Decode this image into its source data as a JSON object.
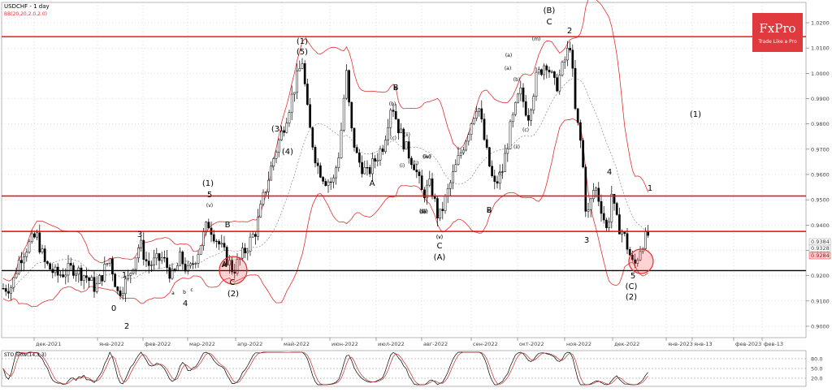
{
  "header": {
    "symbol_label": "USDCHF - 1 day",
    "indicator_label": "BB(20,20,2.0,2.0)",
    "sto_label": "STO Slow(14,3,3)"
  },
  "brand": {
    "name": "FxPro",
    "tagline": "Trade Like a Pro",
    "color": "#e03a3e"
  },
  "colors": {
    "bollinger": "#e03030",
    "level_lines": "#ff0000",
    "support_line": "#000000",
    "candle": "#000000"
  },
  "chart_data": {
    "type": "candlestick",
    "y_axis": {
      "range": [
        0.8915,
        1.0245
      ],
      "ticks": [
        "0.9000",
        "0.9100",
        "0.9200",
        "0.9300",
        "0.9400",
        "0.9500",
        "0.9600",
        "0.9700",
        "0.9800",
        "0.9900",
        "1.0000",
        "1.0100",
        "1.0200"
      ]
    },
    "x_axis": {
      "ticks": [
        "дек-2021",
        "янв-2022",
        "фев-2022",
        "мар-2022",
        "апр-2022",
        "май-2022",
        "июн-2022",
        "июл-2022",
        "авг-2022",
        "сен-2022",
        "окт-2022",
        "ноя-2022",
        "дек-2022",
        "янв-2023",
        "янв-13",
        "фев-2023",
        "фев-13"
      ]
    },
    "price_labels": [
      "0.9384",
      "0.9328",
      "0.9284"
    ],
    "horizontal_levels": [
      1.0145,
      0.9515,
      0.9375
    ],
    "support_level": 0.922,
    "sto": {
      "levels": [
        "80.0",
        "50.0",
        "20.0"
      ],
      "range": [
        0,
        100
      ]
    },
    "wave_labels": [
      "(B)",
      "C",
      "2",
      "(1)",
      "(5)",
      "(3)",
      "(4)",
      "B",
      "(1)",
      "5",
      "(v)",
      "B",
      "A",
      "C",
      "(2)",
      "(A)",
      "A",
      "B",
      "3",
      "0",
      "2",
      "1",
      "4",
      "(C)",
      "5",
      "(2)",
      "3",
      "4",
      "1",
      "(1)",
      "A",
      "B",
      "C",
      "(v)",
      "B",
      "(i)",
      "(ii)",
      "(iii)",
      "(iv)",
      "(v)",
      "a",
      "b",
      "c",
      "(a)",
      "(b)",
      "(c)",
      "(i)",
      "(ii)",
      "(iii)",
      "(iv)",
      "(m)",
      "(b)",
      "(a)",
      "(c)",
      "(i)",
      "(ii)"
    ]
  }
}
